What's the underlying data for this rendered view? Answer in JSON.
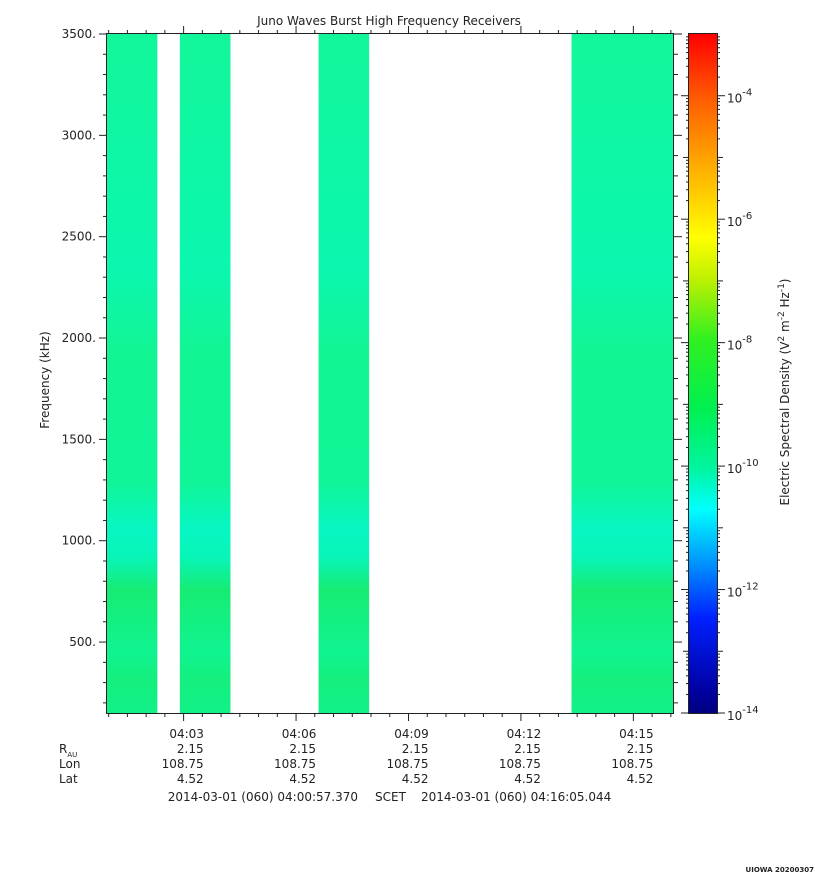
{
  "chart_data": {
    "type": "heatmap",
    "title": "Juno Waves Burst High Frequency Receivers",
    "ylabel": "Frequency (kHz)",
    "ylim": [
      150,
      3500
    ],
    "y_ticks": [
      "500.",
      "1000.",
      "1500.",
      "2000.",
      "2500.",
      "3000.",
      "3500."
    ],
    "y_tick_values": [
      500,
      1000,
      1500,
      2000,
      2500,
      3000,
      3500
    ],
    "x_ticks": [
      "04:03",
      "04:06",
      "04:09",
      "04:12",
      "04:15"
    ],
    "x_tick_minutes": [
      3,
      6,
      9,
      12,
      15
    ],
    "xlim_minutes": [
      0.956,
      16.084
    ],
    "data_bands_minutes": [
      [
        0.956,
        2.3
      ],
      [
        2.9,
        4.25
      ],
      [
        6.6,
        7.95
      ],
      [
        13.35,
        16.084
      ]
    ],
    "colorbar": {
      "label_main": "Electric Spectral Density (V",
      "label_sup1": "2",
      "label_mid1": " m",
      "label_sup2": "-2",
      "label_mid2": " Hz",
      "label_sup3": "-1",
      "label_end": ")",
      "log_min": -14,
      "log_max": -3,
      "ticks": [
        {
          "base": "10",
          "exp": "-4",
          "value": -4
        },
        {
          "base": "10",
          "exp": "-6",
          "value": -6
        },
        {
          "base": "10",
          "exp": "-8",
          "value": -8
        },
        {
          "base": "10",
          "exp": "-10",
          "value": -10
        },
        {
          "base": "10",
          "exp": "-12",
          "value": -12
        },
        {
          "base": "10",
          "exp": "-14",
          "value": -14
        }
      ]
    }
  },
  "ephemeris": {
    "row_labels": {
      "rau_main": "R",
      "rau_sub": "AU",
      "lon": "Lon",
      "lat": "Lat"
    },
    "columns": [
      {
        "rau": "2.15",
        "lon": "108.75",
        "lat": "4.52"
      },
      {
        "rau": "2.15",
        "lon": "108.75",
        "lat": "4.52"
      },
      {
        "rau": "2.15",
        "lon": "108.75",
        "lat": "4.52"
      },
      {
        "rau": "2.15",
        "lon": "108.75",
        "lat": "4.52"
      },
      {
        "rau": "2.15",
        "lon": "108.75",
        "lat": "4.52"
      }
    ]
  },
  "time_range": {
    "start": "2014-03-01 (060) 04:00:57.370",
    "label": "SCET",
    "end": "2014-03-01 (060) 04:16:05.044"
  },
  "footer": {
    "stamp": "UIOWA 20200307"
  }
}
